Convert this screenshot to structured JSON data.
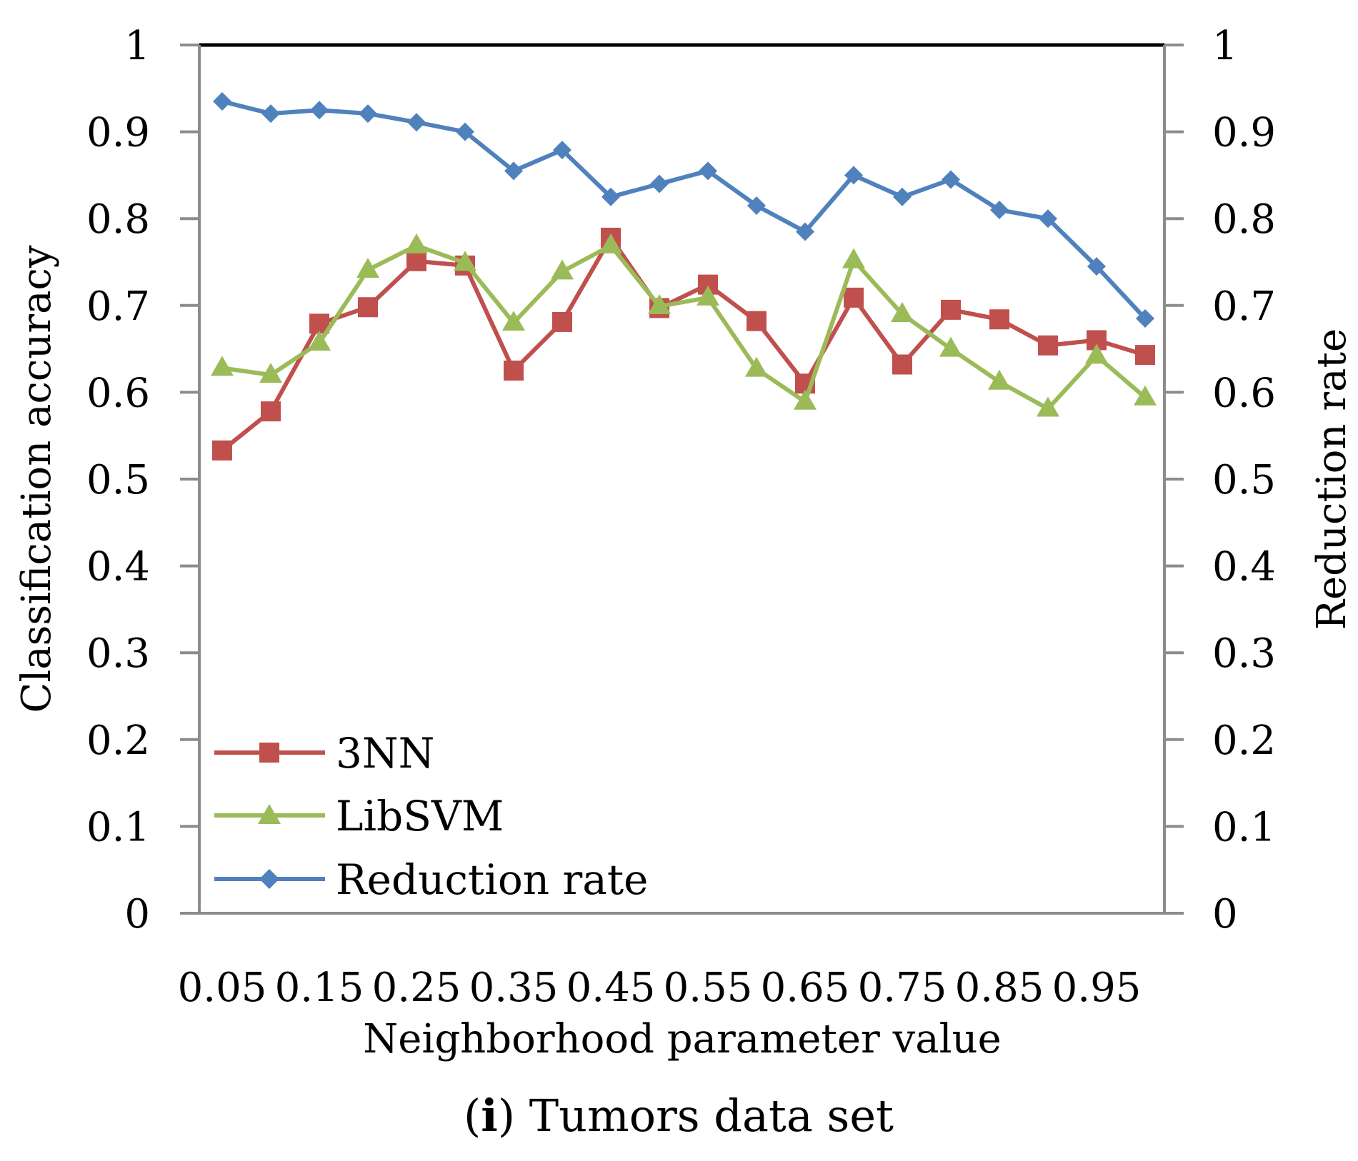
{
  "chart_data": {
    "type": "line",
    "x": [
      0.05,
      0.1,
      0.15,
      0.2,
      0.25,
      0.3,
      0.35,
      0.4,
      0.45,
      0.5,
      0.55,
      0.6,
      0.65,
      0.7,
      0.75,
      0.8,
      0.85,
      0.9,
      0.95,
      1.0
    ],
    "x_tick_labels": [
      "0.05",
      "0.15",
      "0.25",
      "0.35",
      "0.45",
      "0.55",
      "0.65",
      "0.75",
      "0.85",
      "0.95"
    ],
    "series": [
      {
        "name": "3NN",
        "color": "#C0504D",
        "marker": "square",
        "axis": "left",
        "values": [
          0.533,
          0.578,
          0.679,
          0.698,
          0.751,
          0.746,
          0.625,
          0.681,
          0.778,
          0.697,
          0.724,
          0.682,
          0.61,
          0.709,
          0.632,
          0.695,
          0.684,
          0.654,
          0.66,
          0.643
        ]
      },
      {
        "name": "LibSVM",
        "color": "#9BBB59",
        "marker": "triangle",
        "axis": "left",
        "values": [
          0.628,
          0.62,
          0.657,
          0.741,
          0.769,
          0.749,
          0.68,
          0.739,
          0.769,
          0.699,
          0.709,
          0.627,
          0.589,
          0.752,
          0.69,
          0.65,
          0.612,
          0.581,
          0.642,
          0.594
        ]
      },
      {
        "name": "Reduction rate",
        "color": "#4F81BD",
        "marker": "diamond",
        "axis": "right",
        "values": [
          0.935,
          0.921,
          0.925,
          0.921,
          0.911,
          0.9,
          0.855,
          0.879,
          0.825,
          0.84,
          0.855,
          0.815,
          0.785,
          0.85,
          0.825,
          0.845,
          0.81,
          0.8,
          0.745,
          0.685
        ]
      }
    ],
    "xlabel": "Neighborhood parameter value",
    "ylabel": "Classification accuracy",
    "y2label": "Reduction rate",
    "ylim": [
      0,
      1
    ],
    "y2lim": [
      0,
      1
    ],
    "y_ticks": [
      "0",
      "0.1",
      "0.2",
      "0.3",
      "0.4",
      "0.5",
      "0.6",
      "0.7",
      "0.8",
      "0.9",
      "1"
    ],
    "y2_ticks": [
      "0",
      "0.1",
      "0.2",
      "0.3",
      "0.4",
      "0.5",
      "0.6",
      "0.7",
      "0.8",
      "0.9",
      "1"
    ],
    "grid": false,
    "legend_position": "bottom-left",
    "caption_prefix": "(",
    "caption_letter": "i",
    "caption_rest": ") Tumors data set"
  }
}
